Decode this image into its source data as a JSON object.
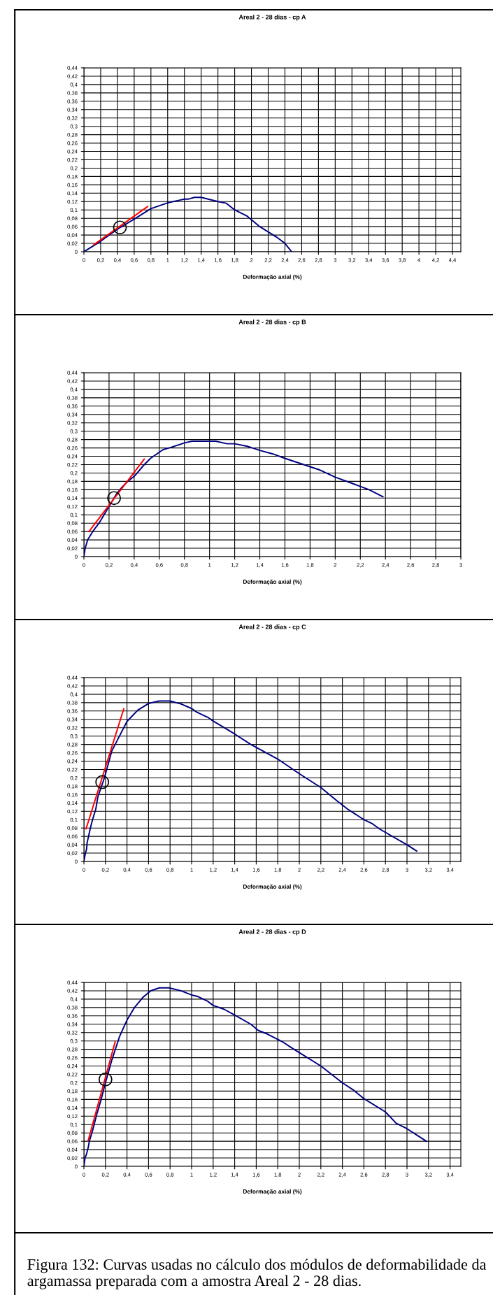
{
  "chart_data": [
    {
      "type": "line",
      "title": "Areal 2 - 28 dias - cp A",
      "xlabel": "Deformação axial (%)",
      "grid": true,
      "xlim": [
        0,
        4.5
      ],
      "ylim": [
        0,
        0.44
      ],
      "xticks": [
        0,
        {
          "value": 0.2,
          "label": "0,2"
        },
        {
          "value": 0.4,
          "label": "0,4"
        },
        {
          "value": 0.6,
          "label": "0,6"
        },
        {
          "value": 0.8,
          "label": "0,8"
        },
        1,
        {
          "value": 1.2,
          "label": "1,2"
        },
        {
          "value": 1.4,
          "label": "1,4"
        },
        {
          "value": 1.6,
          "label": "1,6"
        },
        {
          "value": 1.8,
          "label": "1,8"
        },
        2,
        {
          "value": 2.2,
          "label": "2,2"
        },
        {
          "value": 2.4,
          "label": "2,4"
        },
        {
          "value": 2.6,
          "label": "2,6"
        },
        {
          "value": 2.8,
          "label": "2,8"
        },
        3,
        {
          "value": 3.2,
          "label": "3,2"
        },
        {
          "value": 3.4,
          "label": "3,4"
        },
        {
          "value": 3.6,
          "label": "3,6"
        },
        {
          "value": 3.8,
          "label": "3,8"
        },
        4,
        {
          "value": 4.2,
          "label": "4,2"
        },
        {
          "value": 4.4,
          "label": "4,4"
        }
      ],
      "yticks": [
        0,
        {
          "value": 0.02,
          "label": "0,02"
        },
        {
          "value": 0.04,
          "label": "0,04"
        },
        {
          "value": 0.06,
          "label": "0,06"
        },
        {
          "value": 0.08,
          "label": "0,08"
        },
        {
          "value": 0.1,
          "label": "0,1"
        },
        {
          "value": 0.12,
          "label": "0,12"
        },
        {
          "value": 0.14,
          "label": "0,14"
        },
        {
          "value": 0.16,
          "label": "0,16"
        },
        {
          "value": 0.18,
          "label": "0,18"
        },
        {
          "value": 0.2,
          "label": "0,2"
        },
        {
          "value": 0.22,
          "label": "0,22"
        },
        {
          "value": 0.24,
          "label": "0,24"
        },
        {
          "value": 0.26,
          "label": "0,26"
        },
        {
          "value": 0.28,
          "label": "0,28"
        },
        {
          "value": 0.3,
          "label": "0,3"
        },
        {
          "value": 0.32,
          "label": "0,32"
        },
        {
          "value": 0.34,
          "label": "0,34"
        },
        {
          "value": 0.36,
          "label": "0,36"
        },
        {
          "value": 0.38,
          "label": "0,38"
        },
        {
          "value": 0.4,
          "label": "0,4"
        },
        {
          "value": 0.42,
          "label": "0,42"
        },
        {
          "value": 0.44,
          "label": "0,44"
        }
      ],
      "series": [
        {
          "type": "line",
          "color": "#000080",
          "x": [
            0,
            0.2,
            0.4,
            0.6,
            0.8,
            1.0,
            1.2,
            1.25,
            1.32,
            1.4,
            1.6,
            1.7,
            1.8,
            1.95,
            2.1,
            2.3,
            2.4,
            2.48
          ],
          "values": [
            0,
            0.025,
            0.054,
            0.078,
            0.103,
            0.117,
            0.126,
            0.126,
            0.13,
            0.13,
            0.12,
            0.116,
            0.1,
            0.085,
            0.06,
            0.035,
            0.02,
            0
          ]
        },
        {
          "type": "line",
          "color": "#ff0000",
          "x": [
            0.12,
            0.76
          ],
          "values": [
            0.017,
            0.108
          ]
        },
        {
          "type": "scatter",
          "color": "#000000",
          "marker": "circle",
          "x": [
            0.43
          ],
          "values": [
            0.058
          ]
        }
      ]
    },
    {
      "type": "line",
      "title": "Areal 2 - 28 dias - cp B",
      "xlabel": "Deformação axial (%)",
      "grid": true,
      "xlim": [
        0,
        3
      ],
      "ylim": [
        0,
        0.44
      ],
      "xticks": [
        0,
        {
          "value": 0.2,
          "label": "0,2"
        },
        {
          "value": 0.4,
          "label": "0,4"
        },
        {
          "value": 0.6,
          "label": "0,6"
        },
        {
          "value": 0.8,
          "label": "0,8"
        },
        1,
        {
          "value": 1.2,
          "label": "1,2"
        },
        {
          "value": 1.4,
          "label": "1,4"
        },
        {
          "value": 1.6,
          "label": "1,6"
        },
        {
          "value": 1.8,
          "label": "1,8"
        },
        2,
        {
          "value": 2.2,
          "label": "2,2"
        },
        {
          "value": 2.4,
          "label": "2,4"
        },
        {
          "value": 2.6,
          "label": "2,6"
        },
        {
          "value": 2.8,
          "label": "2,8"
        },
        3
      ],
      "yticks": [
        0,
        {
          "value": 0.02,
          "label": "0,02"
        },
        {
          "value": 0.04,
          "label": "0,04"
        },
        {
          "value": 0.06,
          "label": "0,06"
        },
        {
          "value": 0.08,
          "label": "0,08"
        },
        {
          "value": 0.1,
          "label": "0,1"
        },
        {
          "value": 0.12,
          "label": "0,12"
        },
        {
          "value": 0.14,
          "label": "0,14"
        },
        {
          "value": 0.16,
          "label": "0,16"
        },
        {
          "value": 0.18,
          "label": "0,18"
        },
        {
          "value": 0.2,
          "label": "0,2"
        },
        {
          "value": 0.22,
          "label": "0,22"
        },
        {
          "value": 0.24,
          "label": "0,24"
        },
        {
          "value": 0.26,
          "label": "0,26"
        },
        {
          "value": 0.28,
          "label": "0,28"
        },
        {
          "value": 0.3,
          "label": "0,3"
        },
        {
          "value": 0.32,
          "label": "0,32"
        },
        {
          "value": 0.34,
          "label": "0,34"
        },
        {
          "value": 0.36,
          "label": "0,36"
        },
        {
          "value": 0.38,
          "label": "0,38"
        },
        {
          "value": 0.4,
          "label": "0,4"
        },
        {
          "value": 0.42,
          "label": "0,42"
        },
        {
          "value": 0.44,
          "label": "0,44"
        }
      ],
      "series": [
        {
          "type": "line",
          "color": "#000080",
          "x": [
            0,
            0.01,
            0.03,
            0.07,
            0.12,
            0.16,
            0.2,
            0.26,
            0.3,
            0.35,
            0.41,
            0.48,
            0.53,
            0.63,
            0.7,
            0.8,
            0.86,
            1.05,
            1.14,
            1.2,
            1.3,
            1.4,
            1.5,
            1.6,
            1.7,
            1.88,
            2.0,
            2.2,
            2.27,
            2.38
          ],
          "values": [
            0,
            0.02,
            0.04,
            0.06,
            0.08,
            0.1,
            0.12,
            0.15,
            0.165,
            0.18,
            0.195,
            0.22,
            0.235,
            0.256,
            0.262,
            0.272,
            0.276,
            0.276,
            0.27,
            0.27,
            0.264,
            0.254,
            0.246,
            0.235,
            0.225,
            0.207,
            0.19,
            0.168,
            0.16,
            0.143
          ]
        },
        {
          "type": "line",
          "color": "#ff0000",
          "x": [
            0.04,
            0.48
          ],
          "values": [
            0.06,
            0.233
          ]
        },
        {
          "type": "scatter",
          "color": "#000000",
          "marker": "circle",
          "x": [
            0.24
          ],
          "values": [
            0.14
          ]
        }
      ]
    },
    {
      "type": "line",
      "title": "Areal 2 - 28 dias - cp C",
      "xlabel": "Deformação axial (%)",
      "grid": true,
      "xlim": [
        0,
        3.5
      ],
      "ylim": [
        0,
        0.44
      ],
      "xticks": [
        0,
        {
          "value": 0.2,
          "label": "0,2"
        },
        {
          "value": 0.4,
          "label": "0,4"
        },
        {
          "value": 0.6,
          "label": "0,6"
        },
        {
          "value": 0.8,
          "label": "0,8"
        },
        1,
        {
          "value": 1.2,
          "label": "1,2"
        },
        {
          "value": 1.4,
          "label": "1,4"
        },
        {
          "value": 1.6,
          "label": "1,6"
        },
        {
          "value": 1.8,
          "label": "1,8"
        },
        2,
        {
          "value": 2.2,
          "label": "2,2"
        },
        {
          "value": 2.4,
          "label": "2,4"
        },
        {
          "value": 2.6,
          "label": "2,6"
        },
        {
          "value": 2.8,
          "label": "2,8"
        },
        3,
        {
          "value": 3.2,
          "label": "3,2"
        },
        {
          "value": 3.4,
          "label": "3,4"
        }
      ],
      "yticks": [
        0,
        {
          "value": 0.02,
          "label": "0,02"
        },
        {
          "value": 0.04,
          "label": "0,04"
        },
        {
          "value": 0.06,
          "label": "0,06"
        },
        {
          "value": 0.08,
          "label": "0,08"
        },
        {
          "value": 0.1,
          "label": "0,1"
        },
        {
          "value": 0.12,
          "label": "0,12"
        },
        {
          "value": 0.14,
          "label": "0,14"
        },
        {
          "value": 0.16,
          "label": "0,16"
        },
        {
          "value": 0.18,
          "label": "0,18"
        },
        {
          "value": 0.2,
          "label": "0,2"
        },
        {
          "value": 0.22,
          "label": "0,22"
        },
        {
          "value": 0.24,
          "label": "0,24"
        },
        {
          "value": 0.26,
          "label": "0,26"
        },
        {
          "value": 0.28,
          "label": "0,28"
        },
        {
          "value": 0.3,
          "label": "0,3"
        },
        {
          "value": 0.32,
          "label": "0,32"
        },
        {
          "value": 0.34,
          "label": "0,34"
        },
        {
          "value": 0.36,
          "label": "0,36"
        },
        {
          "value": 0.38,
          "label": "0,38"
        },
        {
          "value": 0.4,
          "label": "0,4"
        },
        {
          "value": 0.42,
          "label": "0,42"
        },
        {
          "value": 0.44,
          "label": "0,44"
        }
      ],
      "series": [
        {
          "type": "line",
          "color": "#000080",
          "x": [
            0,
            0.01,
            0.025,
            0.03,
            0.06,
            0.08,
            0.11,
            0.13,
            0.19,
            0.26,
            0.31,
            0.4,
            0.5,
            0.6,
            0.7,
            0.8,
            0.9,
            1.0,
            1.05,
            1.15,
            1.2,
            1.4,
            1.55,
            1.8,
            2.0,
            2.2,
            2.35,
            2.45,
            2.6,
            2.68,
            2.75,
            3.0,
            3.09
          ],
          "values": [
            0,
            0.015,
            0.03,
            0.045,
            0.08,
            0.1,
            0.125,
            0.155,
            0.2,
            0.265,
            0.29,
            0.335,
            0.362,
            0.378,
            0.384,
            0.384,
            0.377,
            0.366,
            0.357,
            0.345,
            0.336,
            0.305,
            0.28,
            0.245,
            0.21,
            0.177,
            0.145,
            0.125,
            0.1,
            0.09,
            0.077,
            0.04,
            0.025
          ]
        },
        {
          "type": "line",
          "color": "#ff0000",
          "x": [
            0.02,
            0.37
          ],
          "values": [
            0.078,
            0.365
          ]
        },
        {
          "type": "scatter",
          "color": "#000000",
          "marker": "circle",
          "x": [
            0.17
          ],
          "values": [
            0.19
          ]
        }
      ]
    },
    {
      "type": "line",
      "title": "Areal 2 - 28 dias - cp D",
      "xlabel": "Deformação axial (%)",
      "grid": true,
      "xlim": [
        0,
        3.5
      ],
      "ylim": [
        0,
        0.44
      ],
      "xticks": [
        0,
        {
          "value": 0.2,
          "label": "0,2"
        },
        {
          "value": 0.4,
          "label": "0,4"
        },
        {
          "value": 0.6,
          "label": "0,6"
        },
        {
          "value": 0.8,
          "label": "0,8"
        },
        1,
        {
          "value": 1.2,
          "label": "1,2"
        },
        {
          "value": 1.4,
          "label": "1,4"
        },
        {
          "value": 1.6,
          "label": "1,6"
        },
        {
          "value": 1.8,
          "label": "1,8"
        },
        2,
        {
          "value": 2.2,
          "label": "2,2"
        },
        {
          "value": 2.4,
          "label": "2,4"
        },
        {
          "value": 2.6,
          "label": "2,6"
        },
        {
          "value": 2.8,
          "label": "2,8"
        },
        3,
        {
          "value": 3.2,
          "label": "3,2"
        },
        {
          "value": 3.4,
          "label": "3,4"
        }
      ],
      "yticks": [
        0,
        {
          "value": 0.02,
          "label": "0,02"
        },
        {
          "value": 0.04,
          "label": "0,04"
        },
        {
          "value": 0.06,
          "label": "0,06"
        },
        {
          "value": 0.08,
          "label": "0,08"
        },
        {
          "value": 0.1,
          "label": "0,1"
        },
        {
          "value": 0.12,
          "label": "0,12"
        },
        {
          "value": 0.14,
          "label": "0,14"
        },
        {
          "value": 0.16,
          "label": "0,16"
        },
        {
          "value": 0.18,
          "label": "0,18"
        },
        {
          "value": 0.2,
          "label": "0,2"
        },
        {
          "value": 0.22,
          "label": "0,22"
        },
        {
          "value": 0.24,
          "label": "0,24"
        },
        {
          "value": 0.26,
          "label": "0,26"
        },
        {
          "value": 0.28,
          "label": "0,28"
        },
        {
          "value": 0.3,
          "label": "0,3"
        },
        {
          "value": 0.32,
          "label": "0,32"
        },
        {
          "value": 0.34,
          "label": "0,34"
        },
        {
          "value": 0.36,
          "label": "0,36"
        },
        {
          "value": 0.38,
          "label": "0,38"
        },
        {
          "value": 0.4,
          "label": "0,4"
        },
        {
          "value": 0.42,
          "label": "0,42"
        },
        {
          "value": 0.44,
          "label": "0,44"
        }
      ],
      "annotations": [
        "Figura 132: Curvas usadas no cálculo dos módulos de deformabilidade da argamassa preparada com a amostra Areal 2 - 28 dias."
      ],
      "series": [
        {
          "type": "line",
          "color": "#000080",
          "x": [
            0,
            0.01,
            0.025,
            0.04,
            0.05,
            0.08,
            0.12,
            0.16,
            0.2,
            0.26,
            0.33,
            0.4,
            0.47,
            0.55,
            0.62,
            0.7,
            0.79,
            0.9,
            1.0,
            1.05,
            1.15,
            1.2,
            1.3,
            1.4,
            1.55,
            1.62,
            1.7,
            1.85,
            1.92,
            2.0,
            2.2,
            2.4,
            2.5,
            2.6,
            2.8,
            2.9,
            3.0,
            3.12,
            3.18
          ],
          "values": [
            0,
            0.02,
            0.03,
            0.045,
            0.06,
            0.085,
            0.125,
            0.16,
            0.2,
            0.255,
            0.31,
            0.35,
            0.38,
            0.405,
            0.42,
            0.427,
            0.427,
            0.42,
            0.41,
            0.407,
            0.395,
            0.385,
            0.376,
            0.362,
            0.34,
            0.325,
            0.317,
            0.297,
            0.285,
            0.272,
            0.24,
            0.2,
            0.183,
            0.162,
            0.13,
            0.103,
            0.09,
            0.07,
            0.06
          ]
        },
        {
          "type": "line",
          "color": "#ff0000",
          "x": [
            0.04,
            0.29
          ],
          "values": [
            0.062,
            0.298
          ]
        },
        {
          "type": "scatter",
          "color": "#000000",
          "marker": "circle",
          "x": [
            0.2
          ],
          "values": [
            0.208
          ]
        }
      ]
    }
  ]
}
